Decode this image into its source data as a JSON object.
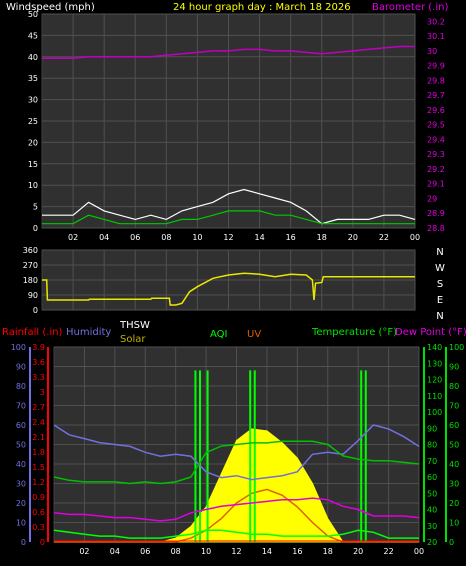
{
  "header": {
    "left_title": "Windspeed (mph)",
    "center_title": "24 hour graph day : March 18 2026",
    "right_title": "Barometer (.in)"
  },
  "wind_dir_labels": [
    "N",
    "W",
    "S",
    "E",
    "N"
  ],
  "bottom_header": {
    "rainfall": "Rainfall (.in)",
    "humidity": "Humidity",
    "thsw": "THSW",
    "solar": "Solar",
    "aqi": "AQI",
    "uv": "UV",
    "temperature": "Temperature (°F)",
    "dew_point": "Dew Point (°F)"
  },
  "colors": {
    "wind": "#ffffff",
    "wind_avg": "#00c800",
    "barometer": "#c000c0",
    "direction": "#e8e800",
    "humidity": "#7070e0",
    "temperature": "#00c000",
    "dew_point": "#e000e0",
    "solar": "#ffff00",
    "uv": "#e06000",
    "aqi": "#00ff00",
    "rain": "#ff0000"
  },
  "chart_data": [
    {
      "type": "line",
      "name": "wind-and-barometer",
      "xlabel": "",
      "x_ticks": [
        "02",
        "04",
        "06",
        "08",
        "10",
        "12",
        "14",
        "16",
        "18",
        "20",
        "22",
        "00"
      ],
      "y_left_ticks": [
        "0",
        "5",
        "10",
        "15",
        "20",
        "25",
        "30",
        "35",
        "40",
        "45",
        "50"
      ],
      "ylim_left": [
        0,
        50
      ],
      "y_right_ticks": [
        "28.8",
        "28.9",
        "29",
        "29.1",
        "29.2",
        "29.3",
        "29.4",
        "29.5",
        "29.6",
        "29.7",
        "29.8",
        "29.9",
        "30",
        "30.1",
        "30.2"
      ],
      "ylim_right": [
        28.8,
        30.25
      ],
      "x_hours": [
        0,
        1,
        2,
        3,
        4,
        5,
        6,
        7,
        8,
        9,
        10,
        11,
        12,
        13,
        14,
        15,
        16,
        17,
        18,
        19,
        20,
        21,
        22,
        23,
        24
      ],
      "series": [
        {
          "axis": "left",
          "values": [
            3,
            3,
            3,
            6,
            4,
            3,
            2,
            3,
            2,
            4,
            5,
            6,
            8,
            9,
            8,
            7,
            6,
            4,
            1,
            2,
            2,
            2,
            3,
            3,
            2
          ]
        },
        {
          "axis": "left",
          "values": [
            1,
            1,
            1,
            3,
            2,
            1,
            1,
            1,
            1,
            2,
            2,
            3,
            4,
            4,
            4,
            3,
            3,
            2,
            1,
            1,
            1,
            1,
            1,
            1,
            1
          ]
        },
        {
          "axis": "right",
          "values": [
            29.95,
            29.95,
            29.95,
            29.96,
            29.96,
            29.96,
            29.96,
            29.96,
            29.97,
            29.98,
            29.99,
            30.0,
            30.0,
            30.01,
            30.01,
            30.0,
            30.0,
            29.99,
            29.98,
            29.99,
            30.0,
            30.01,
            30.02,
            30.03,
            30.03
          ]
        }
      ]
    },
    {
      "type": "line",
      "name": "wind-direction",
      "y_ticks": [
        "360",
        "270",
        "180",
        "90",
        "0"
      ],
      "ylim": [
        0,
        360
      ],
      "x_hours": [
        0,
        0.3,
        0.35,
        3,
        3.05,
        7,
        7.05,
        8.2,
        8.25,
        8.6,
        9.0,
        9.5,
        10,
        11,
        12,
        13,
        14,
        15,
        16,
        17,
        17.4,
        17.5,
        17.6,
        18,
        18.1,
        24
      ],
      "series": [
        {
          "values": [
            180,
            180,
            60,
            60,
            65,
            65,
            70,
            70,
            30,
            30,
            40,
            110,
            140,
            190,
            210,
            220,
            215,
            200,
            215,
            210,
            180,
            60,
            160,
            165,
            200,
            200
          ]
        }
      ]
    },
    {
      "type": "line",
      "name": "rain-humidity-temperature",
      "y_rain_ticks": [
        "0",
        "0.3",
        "0.6",
        "0.9",
        "1.2",
        "1.5",
        "1.8",
        "2.1",
        "2.4",
        "2.7",
        "3",
        "3.3",
        "3.6",
        "3.9"
      ],
      "y_humidity_ticks": [
        "0",
        "10",
        "20",
        "30",
        "40",
        "50",
        "60",
        "70",
        "80",
        "90",
        "100"
      ],
      "y_temp_ticks": [
        "20",
        "30",
        "40",
        "50",
        "60",
        "70",
        "80",
        "90",
        "100",
        "110",
        "120",
        "130",
        "140"
      ],
      "y_aqi_ticks": [
        "0",
        "10",
        "20",
        "30",
        "40",
        "50",
        "60",
        "70",
        "80",
        "90",
        "100"
      ],
      "x_hours": [
        0,
        1,
        2,
        3,
        4,
        5,
        6,
        7,
        8,
        9,
        10,
        11,
        12,
        13,
        14,
        15,
        16,
        17,
        18,
        19,
        20,
        21,
        22,
        23,
        24
      ],
      "series": [
        {
          "key": "humidity",
          "ylim": [
            0,
            100
          ],
          "values": [
            60,
            55,
            53,
            51,
            50,
            49,
            46,
            44,
            45,
            44,
            36,
            33,
            34,
            32,
            33,
            34,
            36,
            45,
            46,
            45,
            52,
            60,
            58,
            54,
            49
          ]
        },
        {
          "key": "temperature",
          "ylim": [
            20,
            140
          ],
          "values": [
            60,
            58,
            57,
            57,
            57,
            56,
            57,
            56,
            57,
            60,
            75,
            79,
            80,
            81,
            81,
            82,
            82,
            82,
            80,
            73,
            71,
            70,
            70,
            69,
            68
          ]
        },
        {
          "key": "dew_point",
          "ylim": [
            20,
            140
          ],
          "values": [
            38,
            37,
            37,
            36,
            35,
            35,
            34,
            33,
            34,
            38,
            40,
            42,
            43,
            44,
            45,
            46,
            46,
            47,
            46,
            42,
            40,
            36,
            36,
            36,
            35
          ]
        },
        {
          "key": "solar",
          "ylim": [
            0,
            100
          ],
          "values": [
            0,
            0,
            0,
            0,
            0,
            0,
            0,
            0,
            2,
            8,
            18,
            35,
            52,
            58,
            57,
            51,
            43,
            30,
            12,
            0,
            0,
            0,
            0,
            0,
            0
          ]
        },
        {
          "key": "uv",
          "ylim": [
            0,
            100
          ],
          "values": [
            0,
            0,
            0,
            0,
            0,
            0,
            0,
            0,
            0,
            2,
            6,
            12,
            20,
            25,
            27,
            24,
            18,
            10,
            3,
            0,
            0,
            0,
            0,
            0,
            0
          ]
        },
        {
          "key": "aqi",
          "ylim": [
            0,
            100
          ],
          "values": [
            6,
            5,
            4,
            3,
            3,
            2,
            2,
            2,
            3,
            4,
            6,
            6,
            5,
            4,
            4,
            3,
            3,
            3,
            3,
            4,
            6,
            5,
            2,
            2,
            2
          ]
        }
      ],
      "aqi_spikes_hours": [
        9.3,
        9.6,
        10.1,
        12.9,
        13.2,
        20.2,
        20.5
      ]
    }
  ]
}
